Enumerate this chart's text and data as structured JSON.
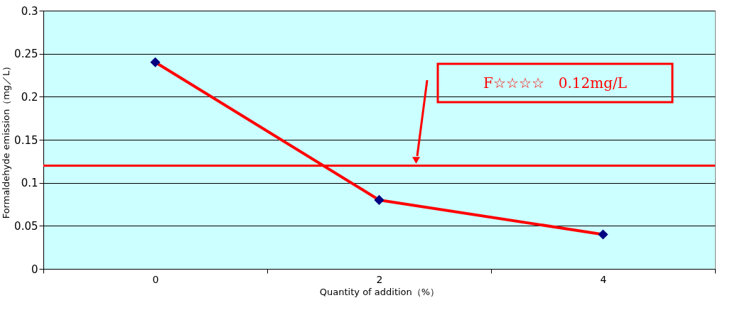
{
  "chart_data": {
    "type": "line",
    "xlabel": "Quantity of addition（%）",
    "ylabel": "Formaldehyde emission（mg／L）",
    "categories": [
      "0",
      "2",
      "4"
    ],
    "series": [
      {
        "color": "#ff0000",
        "colors": [
          "#000080",
          "#000080",
          "#000080"
        ],
        "values": [
          0.24,
          0.08,
          0.04
        ]
      }
    ],
    "ylim": [
      0,
      0.3
    ],
    "yticks": [
      0,
      0.05,
      0.1,
      0.15,
      0.2,
      0.25,
      0.3
    ],
    "grid": "y",
    "marker": "diamond",
    "line_style": "solid",
    "ref_lines": [
      {
        "axis": "y",
        "value": 0.12,
        "label": "F☆☆☆☆　0.12mg/L",
        "color": "#ff0000",
        "line_style": "solid"
      }
    ]
  }
}
